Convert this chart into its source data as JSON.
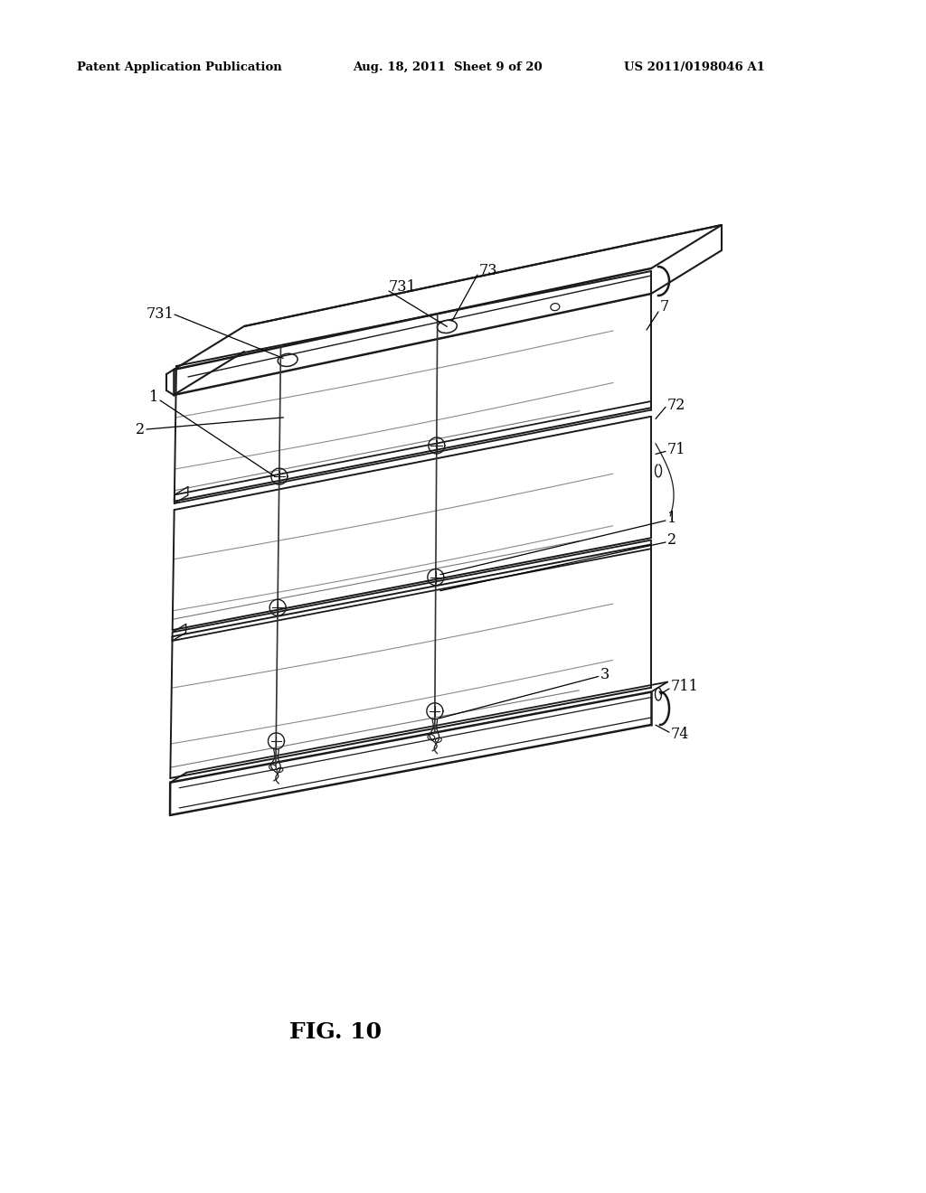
{
  "bg_color": "#ffffff",
  "header_left": "Patent Application Publication",
  "header_center": "Aug. 18, 2011  Sheet 9 of 20",
  "header_right": "US 2011/0198046 A1",
  "figure_label": "FIG. 10",
  "line_color": "#1a1a1a",
  "ann_color": "#000000"
}
